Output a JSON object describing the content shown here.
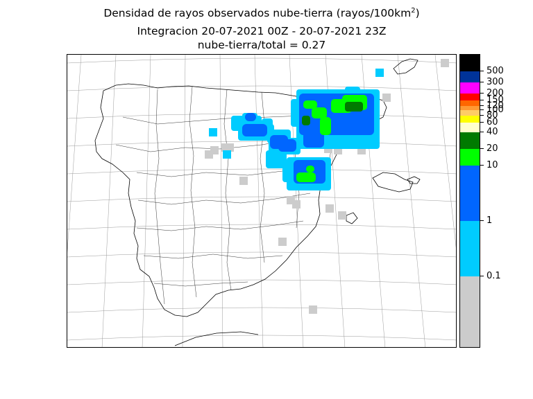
{
  "title": {
    "line1_prefix": "Densidad de rayos observados  nube-tierra  (rayos/100km",
    "line1_sup": "2",
    "line1_suffix": ")",
    "line2": "Integracion 20-07-2021 00Z - 20-07-2021 23Z",
    "line3": "nube-tierra/total = 0.27"
  },
  "colorbar": {
    "colors": [
      "#cccccc",
      "#00ccff",
      "#0066ff",
      "#00ff00",
      "#007a00",
      "#ffffcc",
      "#ffff00",
      "#ffcc66",
      "#ff9933",
      "#ff6600",
      "#ff0000",
      "#ff00ff",
      "#003399",
      "#000000"
    ],
    "tick_labels": [
      "0.1",
      "1",
      "10",
      "20",
      "40",
      "60",
      "80",
      "100",
      "120",
      "150",
      "200",
      "300",
      "500"
    ]
  },
  "colors": {
    "land_outline": "#000000",
    "graticule": "#999999",
    "no_data": "#cccccc"
  }
}
